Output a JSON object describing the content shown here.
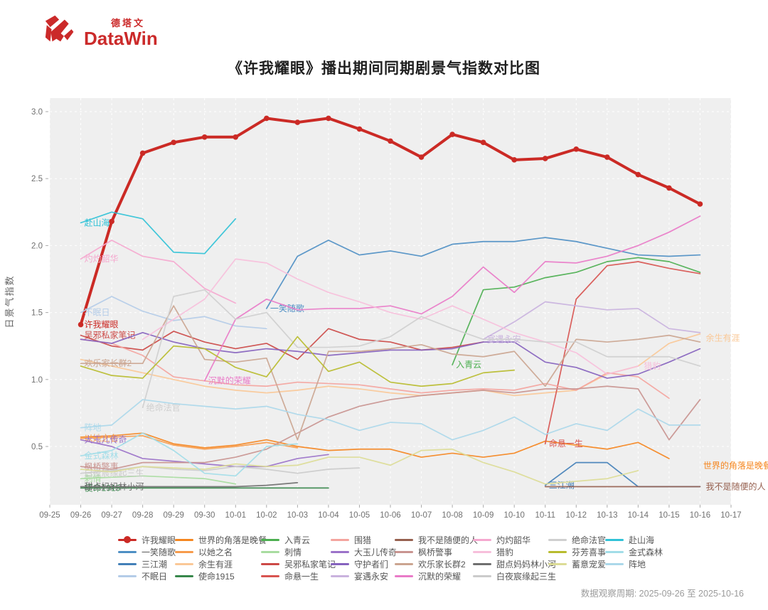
{
  "logo": {
    "cn": "德塔文",
    "en": "DataWin"
  },
  "title": "《许我耀眼》播出期间同期剧景气指数对比图",
  "footer": {
    "observation_period": "数据观察周期: 2025-09-26 至 2025-10-16"
  },
  "chart_data": {
    "type": "line",
    "title": "《许我耀眼》播出期间同期剧景气指数对比图",
    "xlabel": "",
    "ylabel": "日景气指数",
    "ylim": [
      0.05,
      3.1
    ],
    "yticks": [
      0.5,
      1.0,
      1.5,
      2.0,
      2.5,
      3.0
    ],
    "grid": true,
    "legend_position": "bottom",
    "axis_dates": [
      "09-25",
      "09-26",
      "09-27",
      "09-28",
      "09-29",
      "09-30",
      "10-01",
      "10-02",
      "10-03",
      "10-04",
      "10-05",
      "10-06",
      "10-07",
      "10-08",
      "10-09",
      "10-10",
      "10-11",
      "10-12",
      "10-13",
      "10-14",
      "10-15",
      "10-16",
      "10-17"
    ],
    "data_dates": [
      "09-26",
      "09-27",
      "09-28",
      "09-29",
      "09-30",
      "10-01",
      "10-02",
      "10-03",
      "10-04",
      "10-05",
      "10-06",
      "10-07",
      "10-08",
      "10-09",
      "10-10",
      "10-11",
      "10-12",
      "10-13",
      "10-14",
      "10-15",
      "10-16"
    ],
    "series": [
      {
        "name": "许我耀眼",
        "color": "#cb2a25",
        "width": 4,
        "marker": true,
        "values": [
          1.41,
          2.18,
          2.69,
          2.77,
          2.81,
          2.81,
          2.95,
          2.92,
          2.95,
          2.87,
          2.78,
          2.66,
          2.83,
          2.77,
          2.64,
          2.65,
          2.72,
          2.66,
          2.53,
          2.43,
          2.31
        ],
        "label": {
          "di": 0,
          "pos": "s"
        }
      },
      {
        "name": "一笑随歌",
        "color": "#4e8fc4",
        "values": [
          null,
          null,
          null,
          null,
          null,
          null,
          1.53,
          1.92,
          2.04,
          1.93,
          1.96,
          1.92,
          2.01,
          2.03,
          2.03,
          2.06,
          2.03,
          1.98,
          1.93,
          1.92,
          1.93
        ],
        "label": {
          "di": 6,
          "pos": "s"
        }
      },
      {
        "name": "三江潮",
        "color": "#4380b8",
        "values": [
          null,
          null,
          null,
          null,
          null,
          null,
          null,
          null,
          null,
          null,
          null,
          null,
          null,
          null,
          null,
          0.21,
          0.38,
          0.38,
          0.2,
          0.2,
          0.2
        ],
        "label": {
          "di": 15,
          "pos": "s"
        }
      },
      {
        "name": "不眠日",
        "color": "#b4cce8",
        "values": [
          1.5,
          1.62,
          1.51,
          1.44,
          1.47,
          1.4,
          1.38,
          null,
          null,
          null,
          null,
          null,
          null,
          null,
          null,
          null,
          null,
          null,
          null,
          null,
          null
        ],
        "label": {
          "di": 0,
          "pos": "s"
        }
      },
      {
        "name": "世界的角落是晚餐",
        "color": "#f5861f",
        "values": [
          0.57,
          0.58,
          0.6,
          0.52,
          0.49,
          0.51,
          0.55,
          0.5,
          0.47,
          0.48,
          0.48,
          0.42,
          0.45,
          0.42,
          0.45,
          0.54,
          0.51,
          0.48,
          0.53,
          0.41,
          null
        ],
        "label": {
          "di": 19,
          "pos": "e",
          "dx": 48,
          "dy": 14
        }
      },
      {
        "name": "以她之名",
        "color": "#f79b4b",
        "values": [
          0.56,
          0.57,
          0.58,
          0.51,
          0.48,
          0.5,
          0.53,
          0.49,
          null,
          null,
          null,
          null,
          null,
          null,
          null,
          null,
          null,
          null,
          null,
          null,
          null
        ],
        "label": {
          "di": 0,
          "pos": "s"
        }
      },
      {
        "name": "余生有涯",
        "color": "#fac897",
        "values": [
          1.15,
          1.1,
          1.05,
          1.0,
          0.95,
          0.92,
          0.9,
          0.92,
          0.95,
          0.93,
          0.9,
          0.88,
          0.9,
          0.92,
          0.88,
          0.9,
          0.92,
          1.04,
          1.1,
          1.27,
          1.34
        ],
        "label": {
          "di": 20,
          "pos": "e",
          "dy": 10
        }
      },
      {
        "name": "使命1915",
        "color": "#37874b",
        "values": [
          0.19,
          0.19,
          0.19,
          0.19,
          0.19,
          0.19,
          0.19,
          0.19,
          0.19,
          null,
          null,
          null,
          null,
          null,
          null,
          null,
          null,
          null,
          null,
          null,
          null
        ],
        "label": {
          "di": 0,
          "pos": "s"
        }
      },
      {
        "name": "入青云",
        "color": "#4caf50",
        "values": [
          null,
          null,
          null,
          null,
          null,
          null,
          null,
          null,
          null,
          null,
          null,
          null,
          1.11,
          1.67,
          1.69,
          1.76,
          1.8,
          1.88,
          1.91,
          1.88,
          1.8
        ],
        "label": {
          "di": 12,
          "pos": "s"
        }
      },
      {
        "name": "刺情",
        "color": "#a8dca0",
        "values": [
          0.26,
          0.27,
          0.28,
          0.27,
          0.26,
          0.22,
          null,
          null,
          null,
          null,
          null,
          null,
          null,
          null,
          null,
          null,
          null,
          null,
          null,
          null,
          null
        ],
        "label": {
          "di": 0,
          "pos": "s"
        }
      },
      {
        "name": "吴邪私家笔记",
        "color": "#cc4946",
        "values": [
          1.33,
          1.25,
          1.22,
          1.36,
          1.28,
          1.23,
          1.27,
          1.15,
          1.38,
          1.3,
          1.28,
          1.22,
          1.24,
          1.28,
          null,
          null,
          null,
          null,
          null,
          null,
          null
        ],
        "label": {
          "di": 0,
          "pos": "s"
        }
      },
      {
        "name": "命悬一生",
        "color": "#d85450",
        "values": [
          null,
          null,
          null,
          null,
          null,
          null,
          null,
          null,
          null,
          null,
          null,
          null,
          null,
          null,
          null,
          0.52,
          1.6,
          1.85,
          1.88,
          1.83,
          1.79
        ],
        "label": {
          "di": 15,
          "pos": "s"
        }
      },
      {
        "name": "围猎",
        "color": "#f4a49e",
        "values": [
          1.3,
          1.27,
          1.18,
          1.02,
          0.99,
          0.96,
          0.95,
          0.98,
          0.97,
          0.96,
          0.93,
          0.9,
          0.92,
          0.93,
          0.92,
          0.97,
          0.92,
          1.05,
          1.02,
          0.86,
          null
        ]
      },
      {
        "name": "大玉儿传奇",
        "color": "#9b72c9",
        "values": [
          0.55,
          0.5,
          0.41,
          0.39,
          0.37,
          0.35,
          0.35,
          0.41,
          0.44,
          null,
          null,
          null,
          null,
          null,
          null,
          null,
          null,
          null,
          null,
          null,
          null
        ],
        "label": {
          "di": 0,
          "pos": "s"
        }
      },
      {
        "name": "守护者们",
        "color": "#8562be",
        "values": [
          1.3,
          1.27,
          1.35,
          1.28,
          1.23,
          1.2,
          1.23,
          1.21,
          1.18,
          1.2,
          1.22,
          1.22,
          1.23,
          1.28,
          1.28,
          1.13,
          1.09,
          1.01,
          1.04,
          1.13,
          1.23
        ]
      },
      {
        "name": "宴遇永安",
        "color": "#c9b2de",
        "values": [
          null,
          null,
          null,
          null,
          null,
          null,
          null,
          null,
          null,
          null,
          null,
          null,
          null,
          1.3,
          1.43,
          1.58,
          1.55,
          1.52,
          1.53,
          1.38,
          1.35
        ],
        "label": {
          "di": 13,
          "pos": "s"
        }
      },
      {
        "name": "我不是随便的人",
        "color": "#96604f",
        "values": [
          null,
          null,
          null,
          null,
          null,
          null,
          null,
          null,
          null,
          null,
          null,
          null,
          null,
          null,
          null,
          0.2,
          0.2,
          0.2,
          0.2,
          0.2,
          0.2
        ],
        "label": {
          "di": 20,
          "pos": "e"
        }
      },
      {
        "name": "枫桥警事",
        "color": "#c99490",
        "values": [
          0.35,
          0.33,
          0.38,
          0.38,
          0.38,
          0.42,
          0.48,
          0.6,
          0.72,
          0.8,
          0.85,
          0.88,
          0.9,
          0.92,
          0.9,
          0.93,
          0.93,
          0.95,
          0.93,
          0.55,
          0.85
        ],
        "label": {
          "di": 0,
          "pos": "s"
        }
      },
      {
        "name": "欢乐家长群2",
        "color": "#cba590",
        "values": [
          1.12,
          1.12,
          1.12,
          1.55,
          1.15,
          1.13,
          1.16,
          0.55,
          1.21,
          1.21,
          1.23,
          1.26,
          1.19,
          1.17,
          1.21,
          0.95,
          1.3,
          1.28,
          1.3,
          1.33,
          1.28
        ],
        "label": {
          "di": 0,
          "pos": "s"
        }
      },
      {
        "name": "沉默的荣耀",
        "color": "#e97bc8",
        "values": [
          null,
          null,
          null,
          null,
          0.99,
          1.45,
          1.6,
          1.52,
          1.53,
          1.53,
          1.55,
          1.49,
          1.62,
          1.84,
          1.65,
          1.88,
          1.87,
          1.92,
          2.0,
          2.1,
          2.22
        ],
        "label": {
          "di": 4,
          "pos": "s"
        }
      },
      {
        "name": "灼灼韶华",
        "color": "#f5a8cf",
        "values": [
          1.9,
          2.04,
          1.92,
          1.88,
          1.68,
          1.57,
          null,
          null,
          null,
          null,
          null,
          null,
          null,
          null,
          null,
          null,
          null,
          null,
          null,
          null,
          null
        ],
        "label": {
          "di": 0,
          "pos": "s"
        }
      },
      {
        "name": "猎豹",
        "color": "#f7bfdb",
        "values": [
          null,
          null,
          1.3,
          1.45,
          1.6,
          1.9,
          1.87,
          1.75,
          1.65,
          1.58,
          1.5,
          1.45,
          1.55,
          1.45,
          1.35,
          1.28,
          1.2,
          1.04,
          1.1,
          null,
          null
        ],
        "label": {
          "di": 18,
          "pos": "e"
        }
      },
      {
        "name": "甜点妈妈林小河",
        "color": "#6f6f6f",
        "values": [
          0.2,
          0.2,
          0.2,
          0.2,
          0.2,
          0.2,
          0.21,
          0.23,
          null,
          null,
          null,
          null,
          null,
          null,
          null,
          null,
          null,
          null,
          null,
          null,
          null
        ],
        "label": {
          "di": 0,
          "pos": "s"
        }
      },
      {
        "name": "白夜宸缘起三生",
        "color": "#cbcbcb",
        "values": [
          0.3,
          0.32,
          0.35,
          0.33,
          0.32,
          0.35,
          0.33,
          0.3,
          0.33,
          0.34,
          null,
          null,
          null,
          null,
          null,
          null,
          null,
          null,
          null,
          null,
          null
        ],
        "label": {
          "di": 0,
          "pos": "s"
        }
      },
      {
        "name": "绝命法官",
        "color": "#cfcfcf",
        "values": [
          null,
          null,
          0.79,
          1.62,
          1.67,
          1.45,
          1.5,
          1.24,
          1.24,
          1.25,
          1.32,
          1.47,
          1.38,
          1.3,
          1.3,
          1.28,
          1.28,
          1.17,
          1.17,
          1.17,
          1.1
        ],
        "label": {
          "di": 2,
          "pos": "s"
        }
      },
      {
        "name": "芬芳喜事",
        "color": "#b8bc2e",
        "values": [
          1.1,
          1.03,
          1.01,
          1.25,
          1.23,
          1.09,
          1.02,
          1.32,
          1.06,
          1.13,
          0.98,
          0.95,
          0.97,
          1.05,
          1.07,
          null,
          null,
          null,
          null,
          null,
          null
        ]
      },
      {
        "name": "蓄意宠爱",
        "color": "#dcdc96",
        "values": [
          0.33,
          0.31,
          0.35,
          0.34,
          0.33,
          0.37,
          0.35,
          0.36,
          0.42,
          0.42,
          0.36,
          0.47,
          0.48,
          0.38,
          0.31,
          0.22,
          0.24,
          0.26,
          0.32,
          null,
          null
        ]
      },
      {
        "name": "赴山海",
        "color": "#30c2d7",
        "values": [
          2.17,
          2.25,
          2.2,
          1.95,
          1.94,
          2.2,
          null,
          null,
          null,
          null,
          null,
          null,
          null,
          null,
          null,
          null,
          null,
          null,
          null,
          null,
          null
        ],
        "label": {
          "di": 0,
          "pos": "s"
        }
      },
      {
        "name": "金式森林",
        "color": "#a2dde8",
        "values": [
          0.43,
          0.47,
          0.6,
          0.47,
          0.3,
          0.28,
          0.5,
          0.52,
          null,
          null,
          null,
          null,
          null,
          null,
          null,
          null,
          null,
          null,
          null,
          null,
          null
        ],
        "label": {
          "di": 0,
          "pos": "s"
        }
      },
      {
        "name": "阵地",
        "color": "#abd8ea",
        "values": [
          0.64,
          0.66,
          0.85,
          0.82,
          0.8,
          0.78,
          0.8,
          0.74,
          0.7,
          0.62,
          0.68,
          0.67,
          0.55,
          0.62,
          0.72,
          0.59,
          0.67,
          0.62,
          0.78,
          0.66,
          0.66
        ],
        "label": {
          "di": 0,
          "pos": "s"
        }
      }
    ],
    "legend_groups": [
      [
        "许我耀眼",
        "一笑随歌",
        "三江潮",
        "不眠日"
      ],
      [
        "世界的角落是晚餐",
        "以她之名",
        "余生有涯",
        "使命1915"
      ],
      [
        "入青云",
        "刺情",
        "吴邪私家笔记",
        "命悬一生"
      ],
      [
        "围猎",
        "大玉儿传奇",
        "守护者们",
        "宴遇永安"
      ],
      [
        "我不是随便的人",
        "枫桥警事",
        "欢乐家长群2",
        "沉默的荣耀"
      ],
      [
        "灼灼韶华",
        "猎豹",
        "甜点妈妈林小河",
        "白夜宸缘起三生"
      ],
      [
        "绝命法官",
        "芬芳喜事",
        "蓄意宠爱"
      ],
      [
        "赴山海",
        "金式森林",
        "阵地"
      ]
    ]
  }
}
